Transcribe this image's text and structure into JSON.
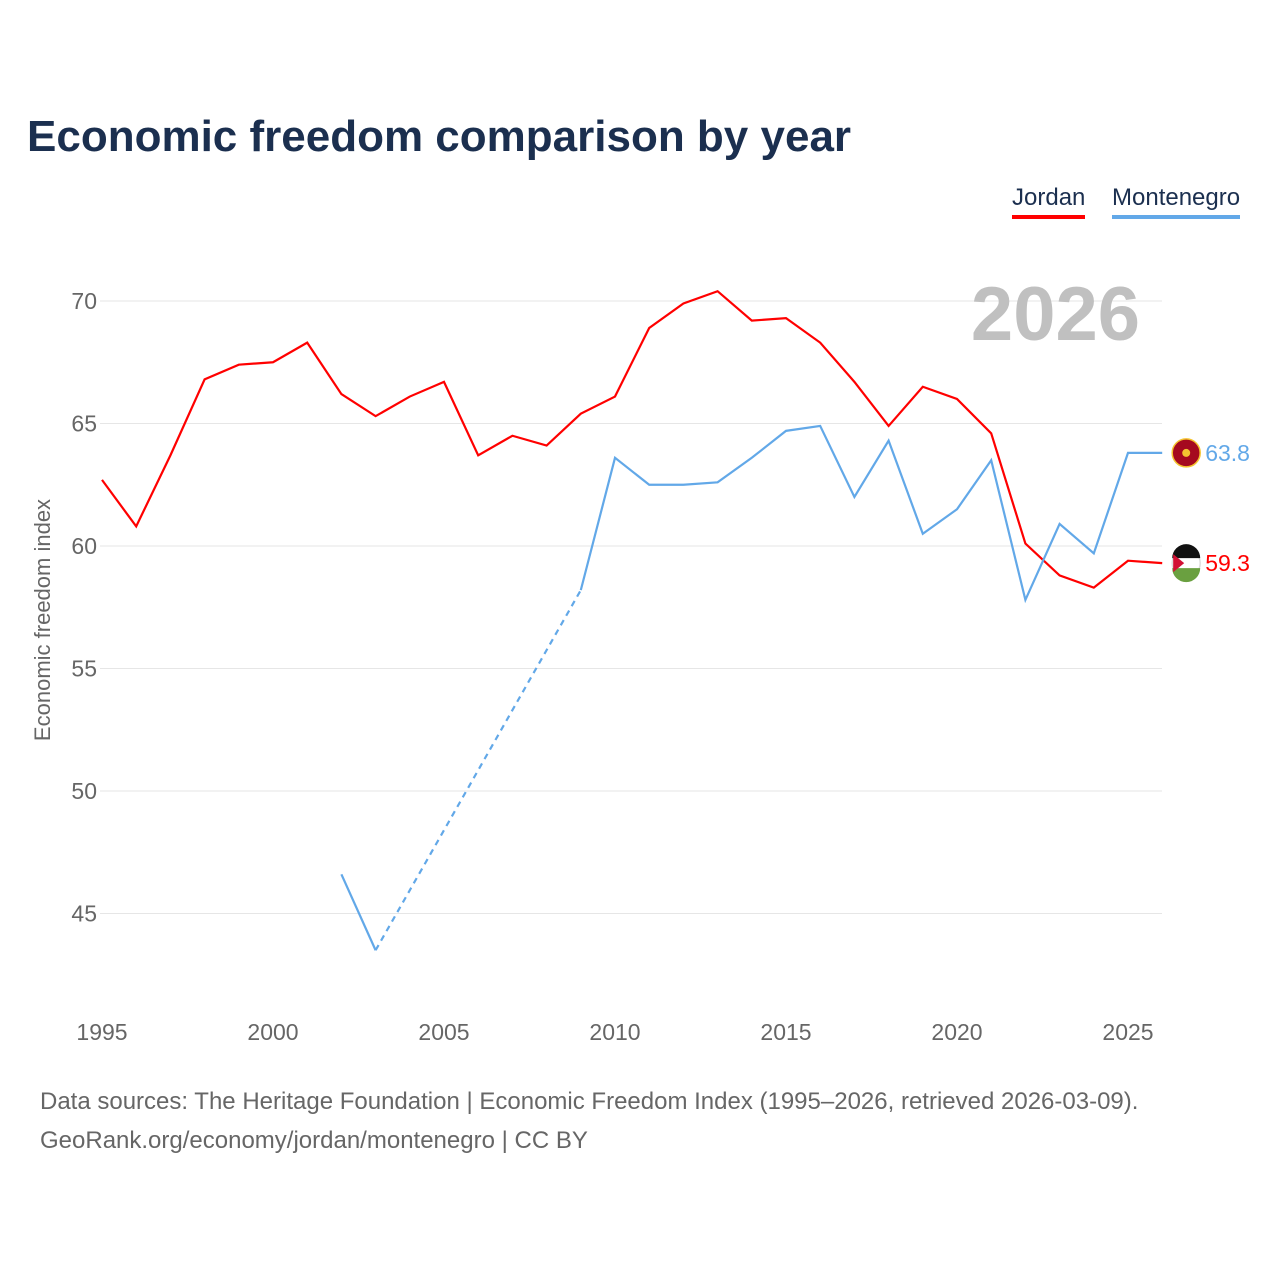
{
  "chart_data": {
    "type": "line",
    "title": "Economic freedom comparison by year",
    "xlabel": "",
    "ylabel": "Economic freedom index",
    "xlim": [
      1995,
      2026
    ],
    "ylim": [
      42,
      72
    ],
    "x_ticks": [
      "1995",
      "2000",
      "2005",
      "2010",
      "2015",
      "2020",
      "2025"
    ],
    "y_ticks": [
      "45",
      "50",
      "55",
      "60",
      "65",
      "70"
    ],
    "grid": true,
    "legend_position": "top-right",
    "year_watermark": "2026",
    "x": [
      1995,
      1996,
      1997,
      1998,
      1999,
      2000,
      2001,
      2002,
      2003,
      2004,
      2005,
      2006,
      2007,
      2008,
      2009,
      2010,
      2011,
      2012,
      2013,
      2014,
      2015,
      2016,
      2017,
      2018,
      2019,
      2020,
      2021,
      2022,
      2023,
      2024,
      2025,
      2026
    ],
    "series": [
      {
        "name": "Jordan",
        "color": "#ff0000",
        "end_label": "59.3",
        "values": [
          62.7,
          60.8,
          63.7,
          66.8,
          67.4,
          67.5,
          68.3,
          66.2,
          65.3,
          66.1,
          66.7,
          63.7,
          64.5,
          64.1,
          65.4,
          66.1,
          68.9,
          69.9,
          70.4,
          69.2,
          69.3,
          68.3,
          66.7,
          64.9,
          66.5,
          66.0,
          64.6,
          60.1,
          58.8,
          58.3,
          59.4,
          59.3
        ]
      },
      {
        "name": "Montenegro",
        "color": "#62a8e8",
        "end_label": "63.8",
        "values": [
          null,
          null,
          null,
          null,
          null,
          null,
          null,
          46.6,
          43.5,
          null,
          null,
          null,
          null,
          null,
          58.2,
          63.6,
          62.5,
          62.5,
          62.6,
          63.6,
          64.7,
          64.9,
          62.0,
          64.3,
          60.5,
          61.5,
          63.5,
          57.8,
          60.9,
          59.7,
          63.8,
          63.8
        ]
      }
    ]
  },
  "footer": {
    "line1": "Data sources: The Heritage Foundation | Economic Freedom Index (1995–2026, retrieved 2026-03-09).",
    "line2": "GeoRank.org/economy/jordan/montenegro | CC BY"
  }
}
